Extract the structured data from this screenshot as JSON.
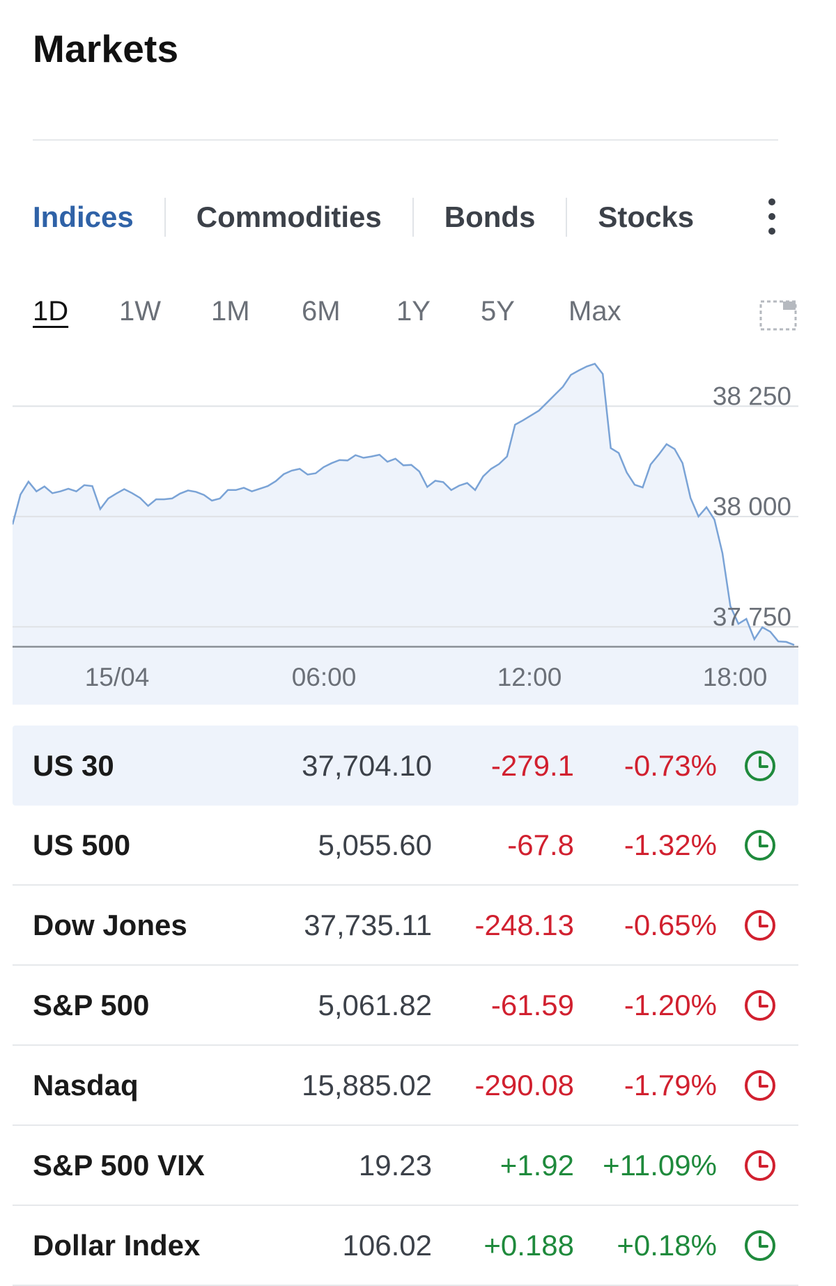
{
  "title": "Markets",
  "tabs": [
    "Indices",
    "Commodities",
    "Bonds",
    "Stocks"
  ],
  "ranges": [
    "1D",
    "1W",
    "1M",
    "6M",
    "1Y",
    "5Y",
    "Max"
  ],
  "active_range": "1D",
  "colors": {
    "accent": "#2f62a7",
    "negative": "#d1202f",
    "positive": "#1f8a3c",
    "line": "#7aa3d6",
    "area": "#eef3fb",
    "row_highlight": "#eef3fb"
  },
  "icons": {
    "more": "vertical-ellipsis-icon",
    "expand": "expand-icon",
    "market_status": "clock-icon"
  },
  "chart_data": {
    "type": "area",
    "x_ticks": [
      "15/04",
      "06:00",
      "12:00",
      "18:00"
    ],
    "y_ticks": [
      "38 250",
      "38 000",
      "37 750"
    ],
    "ylim": [
      37700,
      38350
    ],
    "reference_line": 37705,
    "values": [
      37982,
      38050,
      38079,
      38057,
      38068,
      38053,
      38057,
      38063,
      38057,
      38071,
      38069,
      38017,
      38041,
      38052,
      38062,
      38053,
      38042,
      38024,
      38039,
      38039,
      38041,
      38052,
      38059,
      38056,
      38049,
      38036,
      38041,
      38060,
      38060,
      38065,
      38057,
      38063,
      38069,
      38080,
      38096,
      38104,
      38108,
      38095,
      38098,
      38112,
      38121,
      38128,
      38127,
      38139,
      38133,
      38136,
      38140,
      38124,
      38131,
      38116,
      38117,
      38102,
      38067,
      38081,
      38078,
      38060,
      38070,
      38076,
      38060,
      38091,
      38108,
      38119,
      38136,
      38208,
      38218,
      38229,
      38240,
      38258,
      38276,
      38294,
      38321,
      38331,
      38340,
      38346,
      38323,
      38155,
      38144,
      38100,
      38072,
      38066,
      38118,
      38140,
      38164,
      38153,
      38121,
      38042,
      38000,
      38021,
      37993,
      37917,
      37797,
      37757,
      37768,
      37722,
      37749,
      37739,
      37717,
      37716,
      37709
    ]
  },
  "quotes": [
    {
      "name": "US 30",
      "last": "37,704.10",
      "chg": "-279.1",
      "pct": "-0.73%",
      "dir": "neg",
      "status": "open"
    },
    {
      "name": "US 500",
      "last": "5,055.60",
      "chg": "-67.8",
      "pct": "-1.32%",
      "dir": "neg",
      "status": "open"
    },
    {
      "name": "Dow Jones",
      "last": "37,735.11",
      "chg": "-248.13",
      "pct": "-0.65%",
      "dir": "neg",
      "status": "closed"
    },
    {
      "name": "S&P 500",
      "last": "5,061.82",
      "chg": "-61.59",
      "pct": "-1.20%",
      "dir": "neg",
      "status": "closed"
    },
    {
      "name": "Nasdaq",
      "last": "15,885.02",
      "chg": "-290.08",
      "pct": "-1.79%",
      "dir": "neg",
      "status": "closed"
    },
    {
      "name": "S&P 500 VIX",
      "last": "19.23",
      "chg": "+1.92",
      "pct": "+11.09%",
      "dir": "pos",
      "status": "closed"
    },
    {
      "name": "Dollar Index",
      "last": "106.02",
      "chg": "+0.188",
      "pct": "+0.18%",
      "dir": "pos",
      "status": "open"
    }
  ]
}
